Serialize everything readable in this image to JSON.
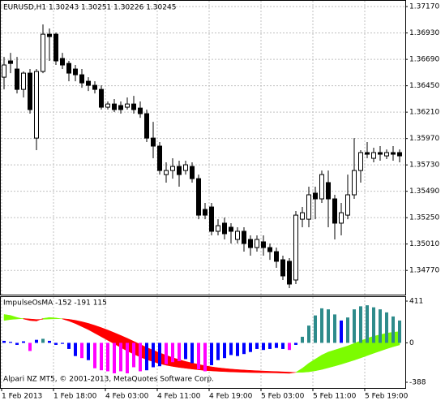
{
  "chart_data": [
    {
      "type": "candlestick",
      "title": "EURUSD,H1  1.30243 1.30251 1.30226 1.30245",
      "open": [
        1.36528,
        1.36676,
        1.36602,
        1.36417,
        1.36565,
        1.35974,
        1.3658,
        1.36919,
        1.36919,
        1.36698,
        1.36653,
        1.36602,
        1.3655,
        1.36491,
        1.36454,
        1.36417,
        1.36255,
        1.36284,
        1.3627,
        1.36255,
        1.36284,
        1.36247,
        1.36196,
        1.35974,
        1.35901,
        1.35642,
        1.35679,
        1.35716,
        1.35679,
        1.35716,
        1.35605,
        1.35325,
        1.35347,
        1.35126,
        1.352,
        1.35163,
        1.35052,
        1.35126,
        1.35052,
        1.34978,
        1.3503,
        1.34978,
        1.34941,
        1.34867,
        1.34853,
        1.34683,
        1.35236,
        1.35236,
        1.35473,
        1.35421,
        1.35569,
        1.35421,
        1.352,
        1.35273,
        1.35458,
        1.35679,
        1.35842,
        1.3579,
        1.35842,
        1.35812,
        1.35842,
        1.35842
      ],
      "high": [
        1.36712,
        1.36749,
        1.36712,
        1.3658,
        1.36602,
        1.36602,
        1.37008,
        1.36971,
        1.36934,
        1.36749,
        1.36676,
        1.36639,
        1.36602,
        1.36528,
        1.36491,
        1.36454,
        1.36307,
        1.36329,
        1.36307,
        1.36343,
        1.36358,
        1.36307,
        1.36233,
        1.36122,
        1.35938,
        1.35753,
        1.3579,
        1.35768,
        1.35768,
        1.35753,
        1.35642,
        1.35384,
        1.35384,
        1.35236,
        1.35251,
        1.352,
        1.35163,
        1.35163,
        1.35089,
        1.35089,
        1.35089,
        1.35015,
        1.34978,
        1.34904,
        1.34882,
        1.3531,
        1.35347,
        1.35532,
        1.35532,
        1.35679,
        1.35679,
        1.35458,
        1.35384,
        1.35642,
        1.35974,
        1.35864,
        1.35938,
        1.35886,
        1.35901,
        1.35871,
        1.35901,
        1.35871
      ],
      "low": [
        1.36417,
        1.36565,
        1.3638,
        1.36343,
        1.36196,
        1.35864,
        1.36565,
        1.36676,
        1.36639,
        1.36602,
        1.36491,
        1.36491,
        1.36432,
        1.36402,
        1.3638,
        1.36233,
        1.36233,
        1.36211,
        1.36196,
        1.36233,
        1.36196,
        1.36159,
        1.35938,
        1.3579,
        1.35642,
        1.35569,
        1.35605,
        1.35532,
        1.35642,
        1.35569,
        1.35236,
        1.35236,
        1.35089,
        1.35089,
        1.35052,
        1.35015,
        1.35015,
        1.34941,
        1.34904,
        1.34941,
        1.34904,
        1.34867,
        1.34794,
        1.34683,
        1.34609,
        1.34646,
        1.35163,
        1.35163,
        1.35236,
        1.35384,
        1.35163,
        1.35052,
        1.35089,
        1.35236,
        1.35421,
        1.35569,
        1.3579,
        1.35753,
        1.35768,
        1.35783,
        1.35768,
        1.35753
      ],
      "close": [
        1.36639,
        1.36653,
        1.36417,
        1.36565,
        1.36233,
        1.3658,
        1.36919,
        1.36897,
        1.36676,
        1.36639,
        1.36565,
        1.3655,
        1.36476,
        1.36454,
        1.36417,
        1.36255,
        1.36284,
        1.36233,
        1.36233,
        1.36284,
        1.36233,
        1.36196,
        1.35974,
        1.35901,
        1.35679,
        1.35679,
        1.35716,
        1.35642,
        1.35731,
        1.35605,
        1.35273,
        1.35273,
        1.35126,
        1.35177,
        1.35104,
        1.35126,
        1.35126,
        1.35015,
        1.34978,
        1.35052,
        1.34978,
        1.34941,
        1.34853,
        1.3472,
        1.34646,
        1.35273,
        1.35295,
        1.35458,
        1.35421,
        1.35642,
        1.35421,
        1.352,
        1.35295,
        1.35458,
        1.35679,
        1.35842,
        1.35827,
        1.35842,
        1.35827,
        1.35842,
        1.35827,
        1.35812
      ],
      "up_color": "#ffffff",
      "down_color": "#000000",
      "outline_color": "#000000",
      "ylim": [
        1.3455,
        1.3723
      ],
      "yticks": [
        {
          "value": 1.3717,
          "label": "1.37170"
        },
        {
          "value": 1.3693,
          "label": "1.36930"
        },
        {
          "value": 1.3669,
          "label": "1.36690"
        },
        {
          "value": 1.3645,
          "label": "1.36450"
        },
        {
          "value": 1.3621,
          "label": "1.36210"
        },
        {
          "value": 1.3597,
          "label": "1.35970"
        },
        {
          "value": 1.3573,
          "label": "1.35730"
        },
        {
          "value": 1.3549,
          "label": "1.35490"
        },
        {
          "value": 1.3525,
          "label": "1.35250"
        },
        {
          "value": 1.3501,
          "label": "1.35010"
        },
        {
          "value": 1.3477,
          "label": "1.34770"
        }
      ],
      "xticks": [
        {
          "value": 0,
          "label": "1 Feb 2013"
        },
        {
          "value": 8,
          "label": "1 Feb 18:00"
        },
        {
          "value": 16,
          "label": "4 Feb 03:00"
        },
        {
          "value": 24,
          "label": "4 Feb 11:00"
        },
        {
          "value": 32,
          "label": "4 Feb 19:00"
        },
        {
          "value": 40,
          "label": "5 Feb 03:00"
        },
        {
          "value": 48,
          "label": "5 Feb 11:00"
        },
        {
          "value": 56,
          "label": "5 Feb 19:00"
        }
      ],
      "grid": true
    },
    {
      "type": "oscillator",
      "title": "ImpulseOsMA -152 -191 115",
      "footer": "Alpari NZ MT5, © 2001-2013, MetaQuotes Software Corp.",
      "values": [
        20,
        10,
        -20,
        15,
        -80,
        30,
        40,
        20,
        -20,
        -10,
        -60,
        -130,
        -150,
        -170,
        -250,
        -270,
        -280,
        -300,
        -280,
        -300,
        -240,
        -280,
        -270,
        -240,
        -230,
        -210,
        -190,
        -180,
        -160,
        -200,
        -260,
        -280,
        -220,
        -170,
        -150,
        -120,
        -130,
        -110,
        -90,
        -60,
        -70,
        -60,
        -50,
        -60,
        -70,
        -20,
        60,
        170,
        270,
        340,
        330,
        280,
        220,
        250,
        330,
        360,
        370,
        350,
        330,
        300,
        260,
        220
      ],
      "colors": [
        "#0000ff",
        "#0000ff",
        "#0000ff",
        "#0000ff",
        "#ff00ff",
        "#0000ff",
        "#2e8b8b",
        "#0000ff",
        "#0000ff",
        "#0000ff",
        "#0000ff",
        "#0000ff",
        "#ff00ff",
        "#0000ff",
        "#ff00ff",
        "#ff00ff",
        "#ff00ff",
        "#ff00ff",
        "#ff00ff",
        "#ff00ff",
        "#ff00ff",
        "#ff00ff",
        "#0000ff",
        "#0000ff",
        "#0000ff",
        "#ff00ff",
        "#ff00ff",
        "#ff00ff",
        "#0000ff",
        "#0000ff",
        "#ff00ff",
        "#ff00ff",
        "#0000ff",
        "#0000ff",
        "#0000ff",
        "#0000ff",
        "#0000ff",
        "#0000ff",
        "#0000ff",
        "#0000ff",
        "#0000ff",
        "#0000ff",
        "#0000ff",
        "#0000ff",
        "#ff00ff",
        "#0000ff",
        "#2e8b8b",
        "#2e8b8b",
        "#2e8b8b",
        "#2e8b8b",
        "#2e8b8b",
        "#2e8b8b",
        "#0000ff",
        "#2e8b8b",
        "#2e8b8b",
        "#2e8b8b",
        "#2e8b8b",
        "#2e8b8b",
        "#2e8b8b",
        "#2e8b8b",
        "#2e8b8b",
        "#2e8b8b"
      ],
      "band_fast": [
        280,
        270,
        250,
        235,
        220,
        215,
        240,
        250,
        245,
        235,
        215,
        190,
        160,
        130,
        95,
        60,
        25,
        -10,
        -45,
        -80,
        -110,
        -140,
        -165,
        -185,
        -205,
        -220,
        -232,
        -242,
        -250,
        -258,
        -265,
        -272,
        -276,
        -280,
        -283,
        -286,
        -288,
        -290,
        -292,
        -293,
        -294,
        -295,
        -296,
        -298,
        -300,
        -290,
        -250,
        -200,
        -160,
        -120,
        -90,
        -70,
        -50,
        -30,
        -5,
        20,
        45,
        65,
        80,
        95,
        105,
        110
      ],
      "band_slow": [
        220,
        230,
        235,
        240,
        235,
        230,
        232,
        235,
        237,
        238,
        232,
        222,
        208,
        192,
        172,
        150,
        126,
        100,
        73,
        45,
        15,
        -15,
        -45,
        -72,
        -98,
        -122,
        -145,
        -165,
        -183,
        -198,
        -212,
        -225,
        -236,
        -245,
        -252,
        -258,
        -263,
        -267,
        -271,
        -274,
        -277,
        -280,
        -282,
        -285,
        -288,
        -291,
        -290,
        -285,
        -275,
        -262,
        -245,
        -228,
        -210,
        -190,
        -170,
        -148,
        -125,
        -102,
        -80,
        -58,
        -38,
        -20
      ],
      "band_up_color": "#7cfc00",
      "band_down_color": "#ff0000",
      "ylim": [
        -444,
        459
      ],
      "yticks": [
        411,
        0,
        -388
      ]
    }
  ]
}
